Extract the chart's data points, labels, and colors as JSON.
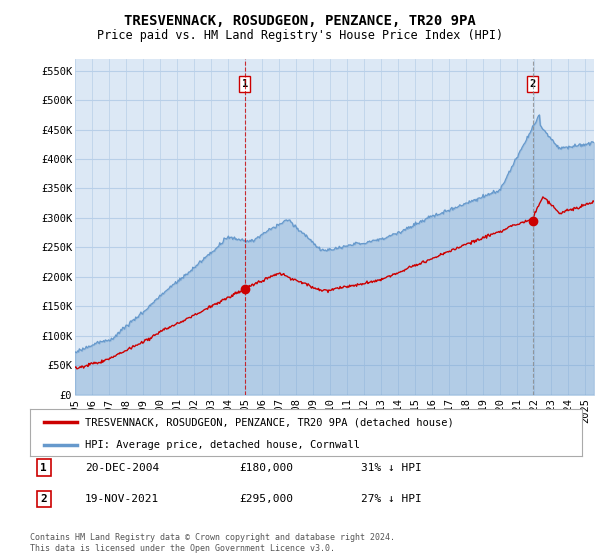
{
  "title": "TRESVENNACK, ROSUDGEON, PENZANCE, TR20 9PA",
  "subtitle": "Price paid vs. HM Land Registry's House Price Index (HPI)",
  "ylabel_ticks": [
    "£0",
    "£50K",
    "£100K",
    "£150K",
    "£200K",
    "£250K",
    "£300K",
    "£350K",
    "£400K",
    "£450K",
    "£500K",
    "£550K"
  ],
  "ytick_values": [
    0,
    50000,
    100000,
    150000,
    200000,
    250000,
    300000,
    350000,
    400000,
    450000,
    500000,
    550000
  ],
  "ylim": [
    0,
    570000
  ],
  "xlim_start": 1995.0,
  "xlim_end": 2025.5,
  "xtick_years": [
    1995,
    1996,
    1997,
    1998,
    1999,
    2000,
    2001,
    2002,
    2003,
    2004,
    2005,
    2006,
    2007,
    2008,
    2009,
    2010,
    2011,
    2012,
    2013,
    2014,
    2015,
    2016,
    2017,
    2018,
    2019,
    2020,
    2021,
    2022,
    2023,
    2024,
    2025
  ],
  "legend_property_label": "TRESVENNACK, ROSUDGEON, PENZANCE, TR20 9PA (detached house)",
  "legend_hpi_label": "HPI: Average price, detached house, Cornwall",
  "property_color": "#cc0000",
  "hpi_color": "#6699cc",
  "sale1_date_x": 2004.97,
  "sale1_price": 180000,
  "sale1_label": "1",
  "sale1_date_str": "20-DEC-2004",
  "sale1_price_str": "£180,000",
  "sale1_pct": "31% ↓ HPI",
  "sale2_date_x": 2021.9,
  "sale2_price": 295000,
  "sale2_label": "2",
  "sale2_date_str": "19-NOV-2021",
  "sale2_price_str": "£295,000",
  "sale2_pct": "27% ↓ HPI",
  "footer": "Contains HM Land Registry data © Crown copyright and database right 2024.\nThis data is licensed under the Open Government Licence v3.0.",
  "background_color": "#ffffff",
  "plot_bg_color": "#dce8f5",
  "grid_color": "#b8cfe8",
  "title_fontsize": 10,
  "subtitle_fontsize": 8.5,
  "tick_fontsize": 7.5
}
